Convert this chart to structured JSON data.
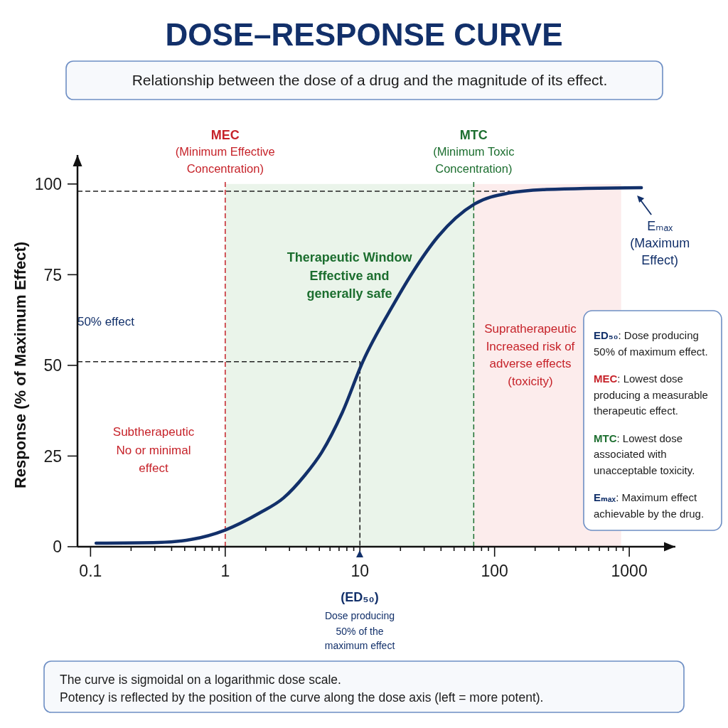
{
  "chart_data": {
    "type": "line",
    "title": "DOSE–RESPONSE CURVE",
    "subtitle": "Relationship between the dose of a drug and the magnitude of its effect.",
    "ylabel": "Response (% of Maximum Effect)",
    "log": "x",
    "xlim": [
      0.08,
      2200
    ],
    "xticks": [
      0.1,
      {
        "value": 0.2,
        "label": null
      },
      {
        "value": 0.3,
        "label": null
      },
      {
        "value": 0.4,
        "label": null
      },
      {
        "value": 0.5,
        "label": null
      },
      {
        "value": 0.6,
        "label": null
      },
      {
        "value": 0.7,
        "label": null
      },
      {
        "value": 0.8,
        "label": null
      },
      {
        "value": 0.9,
        "label": null
      },
      1,
      {
        "value": 2,
        "label": null
      },
      {
        "value": 3,
        "label": null
      },
      {
        "value": 4,
        "label": null
      },
      {
        "value": 5,
        "label": null
      },
      {
        "value": 6,
        "label": null
      },
      {
        "value": 7,
        "label": null
      },
      {
        "value": 8,
        "label": null
      },
      {
        "value": 9,
        "label": null
      },
      10,
      {
        "value": 20,
        "label": null
      },
      {
        "value": 30,
        "label": null
      },
      {
        "value": 40,
        "label": null
      },
      {
        "value": 50,
        "label": null
      },
      {
        "value": 60,
        "label": null
      },
      {
        "value": 70,
        "label": null
      },
      {
        "value": 80,
        "label": null
      },
      {
        "value": 90,
        "label": null
      },
      100,
      {
        "value": 200,
        "label": null
      },
      {
        "value": 300,
        "label": null
      },
      {
        "value": 400,
        "label": null
      },
      {
        "value": 500,
        "label": null
      },
      {
        "value": 600,
        "label": null
      },
      {
        "value": 700,
        "label": null
      },
      {
        "value": 800,
        "label": null
      },
      {
        "value": 900,
        "label": null
      },
      1000
    ],
    "ylim": [
      0,
      108
    ],
    "yticks": [
      0,
      25,
      50,
      75,
      100
    ],
    "series": [
      {
        "x": [
          0.08,
          130
        ],
        "values": [
          98,
          98
        ],
        "color": "#222222",
        "line_style": "dashed"
      },
      {
        "x": [
          0.08,
          10,
          10
        ],
        "values": [
          51,
          51,
          0
        ],
        "color": "#222222",
        "line_style": "dashed"
      },
      {
        "x": [
          0.11,
          0.32,
          0.56,
          1,
          1.8,
          2.7,
          3.9,
          5.2,
          7.4,
          10.5,
          17.9,
          25,
          38,
          71,
          127,
          243,
          1230
        ],
        "values": [
          1,
          1.2,
          2,
          4.6,
          9.3,
          13.4,
          19.7,
          26,
          37,
          51,
          67,
          76,
          85.5,
          94.5,
          97.5,
          98.5,
          99
        ],
        "color": "#12306a",
        "line_style": "solid"
      }
    ],
    "ref_lines": [
      {
        "axis": "x",
        "value": 1,
        "label": "MEC\n(Minimum Effective\nConcentration)",
        "color": "#c62229",
        "line_style": "dashed"
      },
      {
        "axis": "x",
        "value": 70,
        "label": "MTC\n(Minimum Toxic\nConcentration)",
        "color": "#1c6e2f",
        "line_style": "dashed"
      }
    ],
    "bands": [
      {
        "axis": "x",
        "from": 1,
        "to": 70,
        "label": "Therapeutic Window\nEffective and\ngenerally safe",
        "color": "#eaf4ea"
      },
      {
        "axis": "x",
        "from": 70,
        "to": 870,
        "label": "Supratherapeutic\nIncreased risk of\nadverse effects\n(toxicity)",
        "color": "#fcecec"
      }
    ],
    "annotations": [
      {
        "text": "50% effect",
        "x": 0.13,
        "y": 51
      },
      {
        "text": "Eₘₐₓ\n(Maximum\nEffect)",
        "x": 1230,
        "y": 99
      },
      "Subtherapeutic\nNo or minimal\neffect",
      "(ED₅₀)",
      "Dose producing\n50% of the\nmaximum effect",
      "ED₅₀: Dose producing\n50% of maximum effect.",
      "MEC: Lowest dose\nproducing a measurable\ntherapeutic effect.",
      "MTC: Lowest dose\nassociated with\nunacceptable toxicity.",
      "Eₘₐₓ: Maximum effect\nachievable by the drug.",
      "The curve is sigmoidal on a logarithmic dose scale.",
      "Potency is reflected by the position of the curve along the dose axis (left = more potent)."
    ]
  }
}
